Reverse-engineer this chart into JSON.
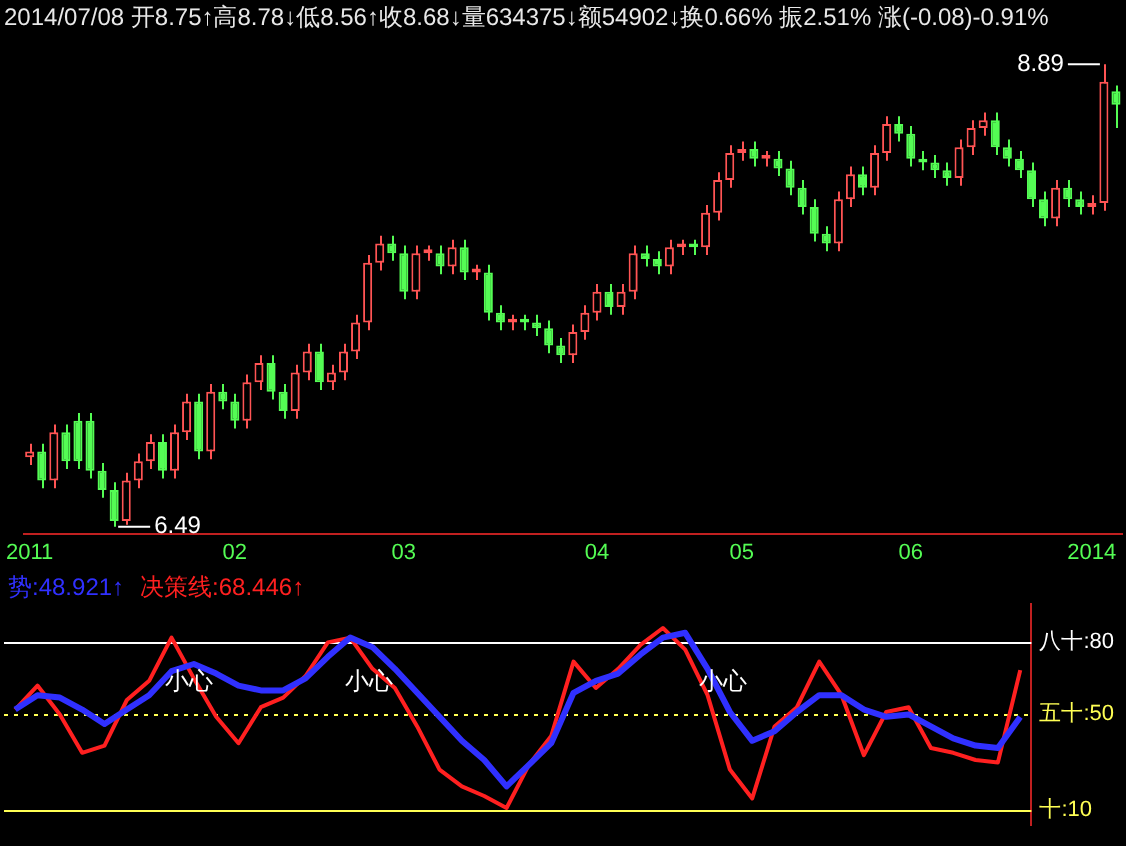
{
  "chart_data": [
    {
      "type": "candlestick",
      "subtitle": "2014/07/08 开8.75↑高8.78↓低8.56↑收8.68↓量634375↓额54902↓换0.66% 振2.51% 涨(-0.08)-0.91%",
      "tick_labels": "x",
      "categories": [
        "2011",
        null,
        null,
        null,
        null,
        null,
        null,
        null,
        null,
        null,
        null,
        null,
        null,
        null,
        null,
        null,
        null,
        "02",
        null,
        null,
        null,
        null,
        null,
        null,
        null,
        null,
        null,
        null,
        null,
        null,
        null,
        "03",
        null,
        null,
        null,
        null,
        null,
        null,
        null,
        null,
        null,
        null,
        null,
        null,
        null,
        null,
        null,
        "04",
        null,
        null,
        null,
        null,
        null,
        null,
        null,
        null,
        null,
        null,
        null,
        "05",
        null,
        null,
        null,
        null,
        null,
        null,
        null,
        null,
        null,
        null,
        null,
        null,
        null,
        "06",
        null,
        null,
        null,
        null,
        null,
        null,
        null,
        null,
        null,
        null,
        null,
        null,
        null,
        null,
        "2014",
        null,
        null
      ],
      "ohlc": [
        [
          6.85,
          6.92,
          6.81,
          6.88
        ],
        [
          6.88,
          6.92,
          6.69,
          6.73
        ],
        [
          6.73,
          7.02,
          6.69,
          6.98
        ],
        [
          6.98,
          7.02,
          6.79,
          6.83
        ],
        [
          7.04,
          7.08,
          6.79,
          6.83
        ],
        [
          7.04,
          7.08,
          6.74,
          6.78
        ],
        [
          6.78,
          6.82,
          6.64,
          6.68
        ],
        [
          6.68,
          6.72,
          6.49,
          6.52
        ],
        [
          6.52,
          6.77,
          6.5,
          6.73
        ],
        [
          6.73,
          6.87,
          6.69,
          6.83
        ],
        [
          6.83,
          6.97,
          6.79,
          6.93
        ],
        [
          6.93,
          6.97,
          6.74,
          6.78
        ],
        [
          6.78,
          7.02,
          6.74,
          6.98
        ],
        [
          6.98,
          7.18,
          6.94,
          7.14
        ],
        [
          7.14,
          7.18,
          6.84,
          6.88
        ],
        [
          6.88,
          7.23,
          6.84,
          7.19
        ],
        [
          7.19,
          7.23,
          7.1,
          7.14
        ],
        [
          7.14,
          7.18,
          7.0,
          7.04
        ],
        [
          7.04,
          7.28,
          7.0,
          7.24
        ],
        [
          7.24,
          7.38,
          7.2,
          7.34
        ],
        [
          7.34,
          7.38,
          7.15,
          7.19
        ],
        [
          7.19,
          7.23,
          7.05,
          7.09
        ],
        [
          7.09,
          7.33,
          7.05,
          7.29
        ],
        [
          7.29,
          7.44,
          7.25,
          7.4
        ],
        [
          7.4,
          7.44,
          7.2,
          7.24
        ],
        [
          7.24,
          7.33,
          7.2,
          7.29
        ],
        [
          7.29,
          7.44,
          7.25,
          7.4
        ],
        [
          7.4,
          7.59,
          7.36,
          7.55
        ],
        [
          7.55,
          7.9,
          7.51,
          7.86
        ],
        [
          7.86,
          8.0,
          7.82,
          7.96
        ],
        [
          7.96,
          8.0,
          7.87,
          7.91
        ],
        [
          7.91,
          7.95,
          7.67,
          7.71
        ],
        [
          7.71,
          7.95,
          7.67,
          7.91
        ],
        [
          7.91,
          7.95,
          7.87,
          7.93
        ],
        [
          7.91,
          7.95,
          7.8,
          7.84
        ],
        [
          7.84,
          7.98,
          7.8,
          7.94
        ],
        [
          7.94,
          7.98,
          7.77,
          7.81
        ],
        [
          7.81,
          7.85,
          7.77,
          7.83
        ],
        [
          7.81,
          7.85,
          7.56,
          7.6
        ],
        [
          7.6,
          7.64,
          7.51,
          7.55
        ],
        [
          7.55,
          7.59,
          7.51,
          7.57
        ],
        [
          7.57,
          7.59,
          7.51,
          7.55
        ],
        [
          7.55,
          7.59,
          7.48,
          7.52
        ],
        [
          7.52,
          7.56,
          7.39,
          7.43
        ],
        [
          7.43,
          7.47,
          7.34,
          7.38
        ],
        [
          7.38,
          7.54,
          7.34,
          7.5
        ],
        [
          7.5,
          7.64,
          7.46,
          7.6
        ],
        [
          7.6,
          7.75,
          7.56,
          7.71
        ],
        [
          7.71,
          7.75,
          7.59,
          7.63
        ],
        [
          7.63,
          7.75,
          7.59,
          7.71
        ],
        [
          7.71,
          7.95,
          7.67,
          7.91
        ],
        [
          7.91,
          7.95,
          7.84,
          7.88
        ],
        [
          7.88,
          7.92,
          7.8,
          7.84
        ],
        [
          7.84,
          7.98,
          7.8,
          7.94
        ],
        [
          7.94,
          7.98,
          7.9,
          7.96
        ],
        [
          7.96,
          7.98,
          7.9,
          7.94
        ],
        [
          7.94,
          8.16,
          7.9,
          8.12
        ],
        [
          8.12,
          8.33,
          8.08,
          8.29
        ],
        [
          8.29,
          8.47,
          8.25,
          8.43
        ],
        [
          8.43,
          8.49,
          8.39,
          8.45
        ],
        [
          8.45,
          8.49,
          8.36,
          8.4
        ],
        [
          8.4,
          8.44,
          8.36,
          8.42
        ],
        [
          8.4,
          8.44,
          8.31,
          8.35
        ],
        [
          8.35,
          8.39,
          8.21,
          8.25
        ],
        [
          8.25,
          8.29,
          8.11,
          8.15
        ],
        [
          8.15,
          8.19,
          7.97,
          8.01
        ],
        [
          8.01,
          8.05,
          7.92,
          7.96
        ],
        [
          7.96,
          8.23,
          7.92,
          8.19
        ],
        [
          8.19,
          8.36,
          8.15,
          8.32
        ],
        [
          8.32,
          8.36,
          8.21,
          8.25
        ],
        [
          8.25,
          8.47,
          8.21,
          8.43
        ],
        [
          8.43,
          8.62,
          8.39,
          8.58
        ],
        [
          8.58,
          8.62,
          8.49,
          8.53
        ],
        [
          8.53,
          8.57,
          8.36,
          8.4
        ],
        [
          8.4,
          8.44,
          8.34,
          8.38
        ],
        [
          8.38,
          8.42,
          8.3,
          8.34
        ],
        [
          8.34,
          8.38,
          8.26,
          8.3
        ],
        [
          8.3,
          8.5,
          8.26,
          8.46
        ],
        [
          8.46,
          8.6,
          8.42,
          8.56
        ],
        [
          8.56,
          8.64,
          8.52,
          8.6
        ],
        [
          8.6,
          8.64,
          8.42,
          8.46
        ],
        [
          8.46,
          8.5,
          8.36,
          8.4
        ],
        [
          8.4,
          8.44,
          8.3,
          8.34
        ],
        [
          8.34,
          8.38,
          8.15,
          8.19
        ],
        [
          8.19,
          8.23,
          8.05,
          8.09
        ],
        [
          8.09,
          8.29,
          8.05,
          8.25
        ],
        [
          8.25,
          8.29,
          8.15,
          8.19
        ],
        [
          8.19,
          8.23,
          8.11,
          8.15
        ],
        [
          8.15,
          8.21,
          8.11,
          8.17
        ],
        [
          8.17,
          8.89,
          8.13,
          8.8
        ],
        [
          8.75,
          8.78,
          8.56,
          8.68
        ]
      ],
      "annotations": [
        "8.89",
        "6.49"
      ]
    },
    {
      "type": "line",
      "tick_labels": "y",
      "legend": "top left",
      "ylim": [
        4,
        96
      ],
      "yticks": [
        {
          "value": 10,
          "label": "十:10"
        },
        {
          "value": 50,
          "label": "五十:50"
        },
        {
          "value": 80,
          "label": "八十:80"
        }
      ],
      "categories": [
        null,
        null,
        null,
        null,
        null,
        null,
        null,
        null,
        null,
        null,
        null,
        null,
        null,
        null,
        null,
        null,
        null,
        null,
        null,
        null,
        null,
        null,
        null,
        null,
        null,
        null,
        null,
        null,
        null,
        null,
        null,
        null,
        null,
        null,
        null,
        null,
        null,
        null,
        null,
        null,
        null,
        null,
        null,
        null,
        null,
        null
      ],
      "series": [
        {
          "name": "势:48.921↑",
          "color": "#3030ff",
          "values": [
            52,
            58,
            57,
            52,
            46,
            52,
            58,
            68,
            71,
            67,
            62,
            60,
            60,
            65,
            74,
            82,
            78,
            69,
            59,
            49,
            39,
            31,
            20,
            29,
            38,
            59,
            64,
            67,
            75,
            82,
            84,
            69,
            51,
            39,
            43,
            51,
            58,
            58,
            52,
            49,
            50,
            45,
            40,
            37,
            36,
            48.921
          ]
        },
        {
          "name": "决策线:68.446↑",
          "color": "#ff2020",
          "values": [
            52,
            62,
            50,
            34,
            37,
            56,
            64,
            82,
            65,
            49,
            38,
            53,
            57,
            66,
            80,
            82,
            69,
            61,
            45,
            27,
            20,
            16,
            11,
            29,
            41,
            72,
            61,
            69,
            79,
            86,
            77,
            58,
            27,
            15,
            45,
            53,
            72,
            58,
            33,
            51,
            53,
            36,
            34,
            31,
            30,
            68.446
          ]
        }
      ],
      "ref_lines": [
        {
          "axis": "y",
          "value": 50,
          "color": "#ffff54",
          "line_style": "dotted"
        },
        {
          "axis": "y",
          "value": 10,
          "color": "#ffff54"
        },
        {
          "axis": "y",
          "value": 80,
          "color": "#ffffff"
        }
      ],
      "annotations": [
        "小心",
        "小心",
        "小心"
      ]
    }
  ]
}
